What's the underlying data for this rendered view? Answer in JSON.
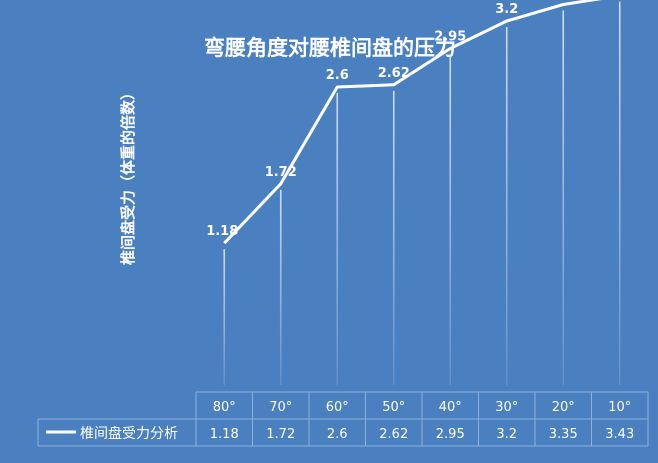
{
  "chart_data": {
    "type": "line",
    "title": "弯腰角度对腰椎间盘的压力",
    "ylabel": "椎间盘受力（体重的倍数）",
    "xlabel": "",
    "categories": [
      "80°",
      "70°",
      "60°",
      "50°",
      "40°",
      "30°",
      "20°",
      "10°"
    ],
    "series": [
      {
        "name": "椎间盘受力分析",
        "values": [
          1.18,
          1.72,
          2.6,
          2.62,
          2.95,
          3.2,
          3.35,
          3.43
        ]
      }
    ],
    "data_labels": [
      "1.18",
      "1.72",
      "2.6",
      "2.62",
      "2.95",
      "3.2",
      "3.35",
      "3.43"
    ],
    "ylim": [
      0,
      3.6
    ],
    "grid": false,
    "legend": "bottom-left (data table)",
    "data_table": true
  },
  "colors": {
    "background": "#4a7fc0",
    "line": "#ffffff",
    "drop_line": "#dfe8f6",
    "table_border": "#8fb0dc",
    "text": "#ffffff",
    "table_text": "#ffffff"
  }
}
